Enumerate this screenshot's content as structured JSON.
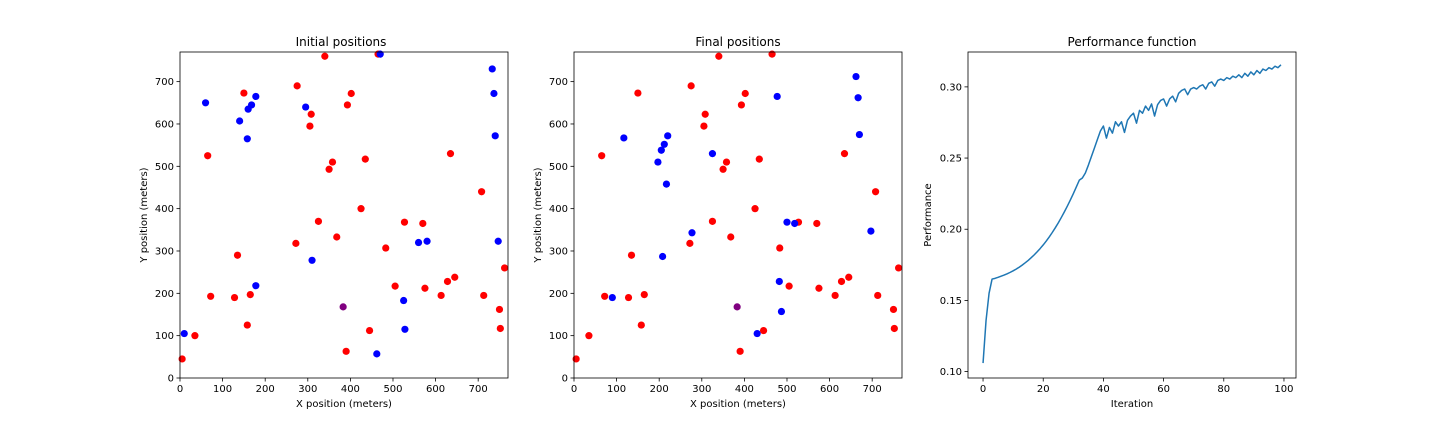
{
  "colors": {
    "red": "#ff0000",
    "blue": "#0000ff",
    "purple": "#800080",
    "line": "#1f77b4"
  },
  "chart_data": [
    {
      "type": "scatter",
      "title": "Initial positions",
      "xlabel": "X position (meters)",
      "ylabel": "Y position (meters)",
      "xlim": [
        0,
        770
      ],
      "ylim": [
        0,
        770
      ],
      "xticks": [
        0,
        100,
        200,
        300,
        400,
        500,
        600,
        700
      ],
      "yticks": [
        0,
        100,
        200,
        300,
        400,
        500,
        600,
        700
      ],
      "series": [
        {
          "color": "red",
          "points": [
            [
              5,
              45
            ],
            [
              35,
              100
            ],
            [
              65,
              525
            ],
            [
              72,
              193
            ],
            [
              128,
              190
            ],
            [
              135,
              290
            ],
            [
              150,
              673
            ],
            [
              158,
              125
            ],
            [
              165,
              197
            ],
            [
              272,
              318
            ],
            [
              275,
              690
            ],
            [
              305,
              595
            ],
            [
              308,
              623
            ],
            [
              325,
              370
            ],
            [
              340,
              760
            ],
            [
              350,
              493
            ],
            [
              358,
              510
            ],
            [
              368,
              333
            ],
            [
              393,
              645
            ],
            [
              390,
              63
            ],
            [
              402,
              672
            ],
            [
              425,
              400
            ],
            [
              435,
              517
            ],
            [
              445,
              112
            ],
            [
              465,
              765
            ],
            [
              483,
              307
            ],
            [
              505,
              217
            ],
            [
              527,
              368
            ],
            [
              570,
              365
            ],
            [
              575,
              212
            ],
            [
              613,
              195
            ],
            [
              628,
              228
            ],
            [
              635,
              530
            ],
            [
              645,
              238
            ],
            [
              708,
              440
            ],
            [
              713,
              195
            ],
            [
              752,
              117
            ],
            [
              750,
              162
            ],
            [
              762,
              260
            ]
          ]
        },
        {
          "color": "blue",
          "points": [
            [
              10,
              105
            ],
            [
              60,
              650
            ],
            [
              140,
              607
            ],
            [
              158,
              565
            ],
            [
              160,
              635
            ],
            [
              168,
              645
            ],
            [
              178,
              665
            ],
            [
              178,
              218
            ],
            [
              295,
              640
            ],
            [
              310,
              278
            ],
            [
              470,
              765
            ],
            [
              462,
              57
            ],
            [
              525,
              183
            ],
            [
              528,
              115
            ],
            [
              560,
              320
            ],
            [
              580,
              323
            ],
            [
              733,
              730
            ],
            [
              737,
              672
            ],
            [
              740,
              572
            ],
            [
              747,
              323
            ]
          ]
        },
        {
          "color": "purple",
          "points": [
            [
              383,
              168
            ]
          ]
        }
      ]
    },
    {
      "type": "scatter",
      "title": "Final positions",
      "xlabel": "X position (meters)",
      "ylabel": "Y position (meters)",
      "xlim": [
        0,
        770
      ],
      "ylim": [
        0,
        770
      ],
      "xticks": [
        0,
        100,
        200,
        300,
        400,
        500,
        600,
        700
      ],
      "yticks": [
        0,
        100,
        200,
        300,
        400,
        500,
        600,
        700
      ],
      "series": [
        {
          "color": "red",
          "points": [
            [
              5,
              45
            ],
            [
              35,
              100
            ],
            [
              65,
              525
            ],
            [
              72,
              193
            ],
            [
              128,
              190
            ],
            [
              135,
              290
            ],
            [
              150,
              673
            ],
            [
              158,
              125
            ],
            [
              165,
              197
            ],
            [
              272,
              318
            ],
            [
              275,
              690
            ],
            [
              305,
              595
            ],
            [
              308,
              623
            ],
            [
              325,
              370
            ],
            [
              340,
              760
            ],
            [
              350,
              493
            ],
            [
              358,
              510
            ],
            [
              368,
              333
            ],
            [
              393,
              645
            ],
            [
              390,
              63
            ],
            [
              402,
              672
            ],
            [
              425,
              400
            ],
            [
              435,
              517
            ],
            [
              445,
              112
            ],
            [
              465,
              765
            ],
            [
              483,
              307
            ],
            [
              505,
              217
            ],
            [
              527,
              368
            ],
            [
              570,
              365
            ],
            [
              575,
              212
            ],
            [
              613,
              195
            ],
            [
              628,
              228
            ],
            [
              635,
              530
            ],
            [
              645,
              238
            ],
            [
              708,
              440
            ],
            [
              713,
              195
            ],
            [
              752,
              117
            ],
            [
              750,
              162
            ],
            [
              762,
              260
            ]
          ]
        },
        {
          "color": "blue",
          "points": [
            [
              90,
              190
            ],
            [
              117,
              567
            ],
            [
              197,
              510
            ],
            [
              205,
              538
            ],
            [
              208,
              287
            ],
            [
              212,
              552
            ],
            [
              217,
              458
            ],
            [
              220,
              572
            ],
            [
              277,
              343
            ],
            [
              325,
              530
            ],
            [
              430,
              105
            ],
            [
              477,
              665
            ],
            [
              482,
              228
            ],
            [
              487,
              157
            ],
            [
              500,
              368
            ],
            [
              518,
              365
            ],
            [
              662,
              712
            ],
            [
              667,
              662
            ],
            [
              670,
              575
            ],
            [
              697,
              347
            ]
          ]
        },
        {
          "color": "purple",
          "points": [
            [
              383,
              168
            ]
          ]
        }
      ]
    },
    {
      "type": "line",
      "title": "Performance function",
      "xlabel": "Iteration",
      "ylabel": "Performance",
      "xlim": [
        -5,
        104
      ],
      "ylim": [
        0.0955,
        0.3245
      ],
      "xticks": [
        0,
        20,
        40,
        60,
        80,
        100
      ],
      "yticks": [
        0.1,
        0.15,
        0.2,
        0.25,
        0.3
      ],
      "ytick_labels": [
        "0.10",
        "0.15",
        "0.20",
        "0.25",
        "0.30"
      ],
      "x": [
        0,
        1,
        2,
        3,
        4,
        5,
        6,
        7,
        8,
        9,
        10,
        11,
        12,
        13,
        14,
        15,
        16,
        17,
        18,
        19,
        20,
        21,
        22,
        23,
        24,
        25,
        26,
        27,
        28,
        29,
        30,
        31,
        32,
        33,
        34,
        35,
        36,
        37,
        38,
        39,
        40,
        41,
        42,
        43,
        44,
        45,
        46,
        47,
        48,
        49,
        50,
        51,
        52,
        53,
        54,
        55,
        56,
        57,
        58,
        59,
        60,
        61,
        62,
        63,
        64,
        65,
        66,
        67,
        68,
        69,
        70,
        71,
        72,
        73,
        74,
        75,
        76,
        77,
        78,
        79,
        80,
        81,
        82,
        83,
        84,
        85,
        86,
        87,
        88,
        89,
        90,
        91,
        92,
        93,
        94,
        95,
        96,
        97,
        98,
        99
      ],
      "values": [
        0.106,
        0.136,
        0.155,
        0.165,
        0.1655,
        0.1662,
        0.167,
        0.1678,
        0.1687,
        0.1697,
        0.1708,
        0.172,
        0.1733,
        0.1748,
        0.1764,
        0.1781,
        0.18,
        0.182,
        0.1842,
        0.1865,
        0.189,
        0.1917,
        0.1946,
        0.1977,
        0.201,
        0.2045,
        0.2082,
        0.2121,
        0.2162,
        0.2205,
        0.225,
        0.2297,
        0.2345,
        0.236,
        0.2395,
        0.245,
        0.251,
        0.257,
        0.263,
        0.269,
        0.2725,
        0.264,
        0.2715,
        0.2675,
        0.2755,
        0.2725,
        0.2755,
        0.268,
        0.2765,
        0.2795,
        0.2815,
        0.2745,
        0.2835,
        0.2815,
        0.2865,
        0.2835,
        0.288,
        0.2795,
        0.2875,
        0.2905,
        0.2915,
        0.2865,
        0.2915,
        0.2935,
        0.2895,
        0.2955,
        0.2975,
        0.2985,
        0.2945,
        0.2985,
        0.2995,
        0.2985,
        0.3005,
        0.3015,
        0.2985,
        0.3025,
        0.3035,
        0.3005,
        0.3045,
        0.3055,
        0.3045,
        0.3065,
        0.3055,
        0.3075,
        0.3065,
        0.3085,
        0.3065,
        0.3095,
        0.3075,
        0.3105,
        0.3085,
        0.3115,
        0.3095,
        0.3125,
        0.3115,
        0.3135,
        0.3125,
        0.3145,
        0.3135,
        0.3155
      ]
    }
  ]
}
